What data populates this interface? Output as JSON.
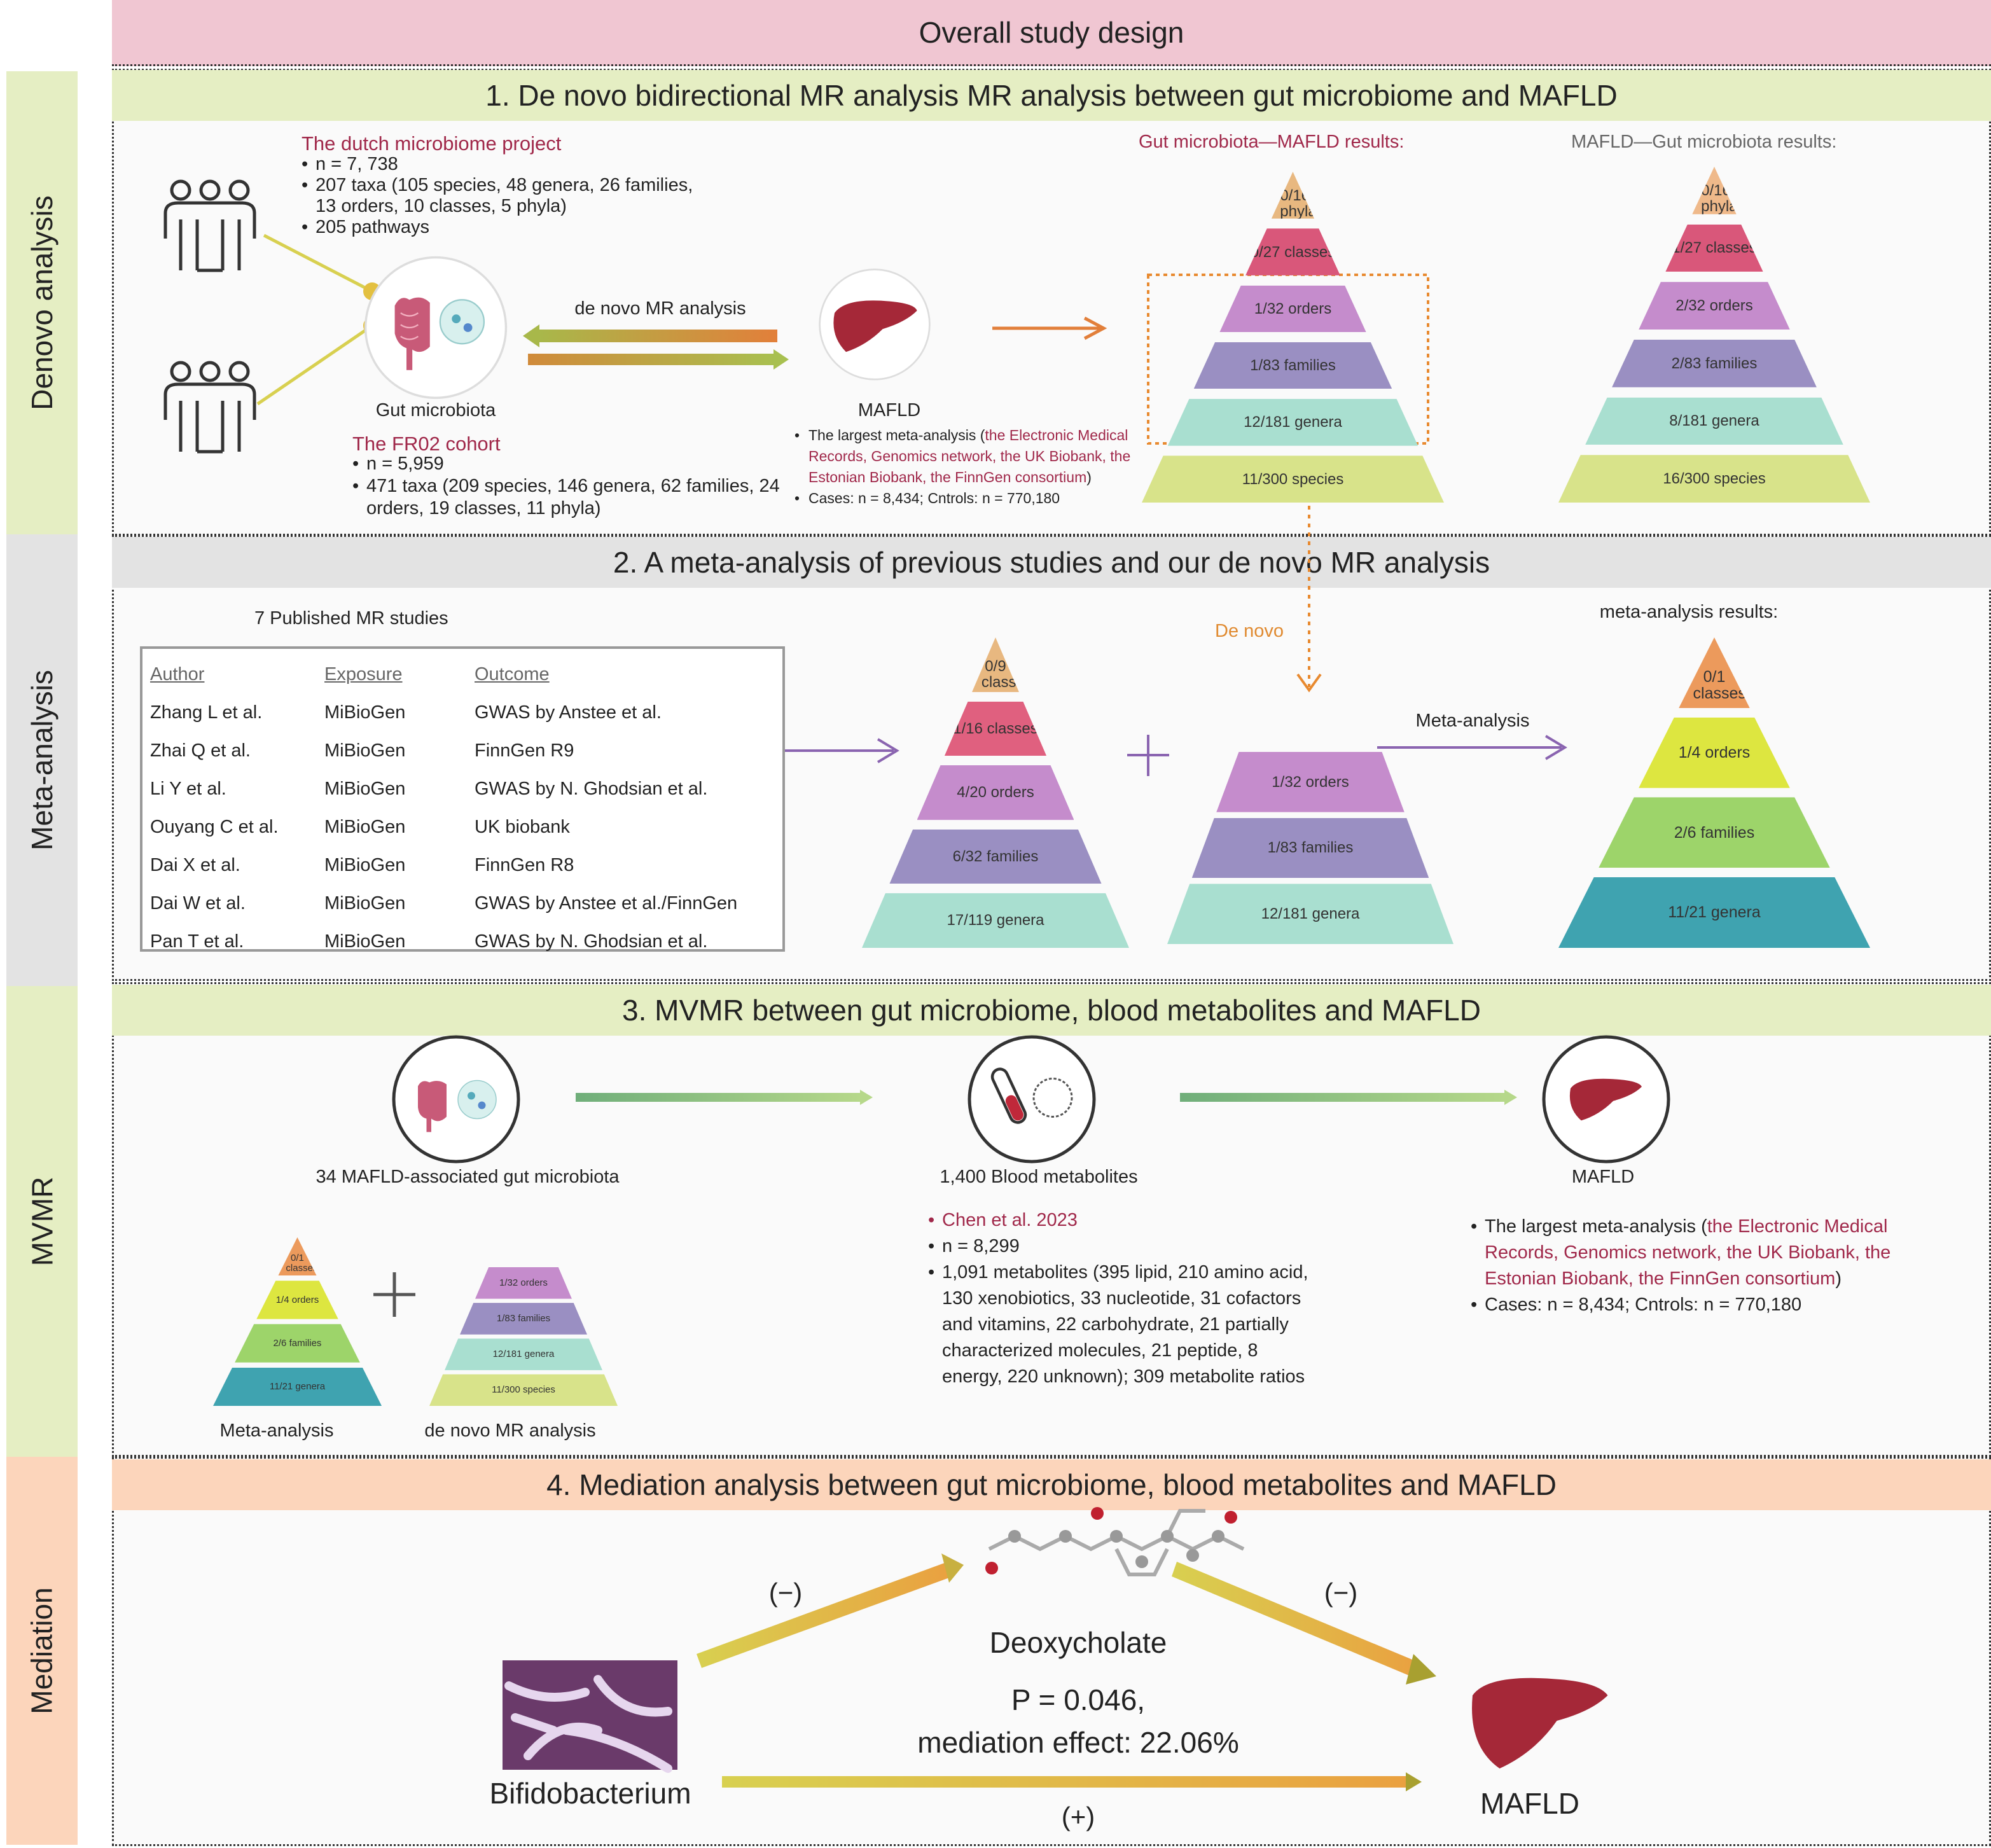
{
  "header": {
    "title": "Overall study design"
  },
  "side_labels": [
    "Denovo analysis",
    "Meta-analysis",
    "MVMR",
    "Mediation"
  ],
  "section1": {
    "title": "1. De novo bidirectional MR analysis MR analysis between gut microbiome and MAFLD",
    "dmp": {
      "title": "The dutch microbiome project",
      "bullets": [
        "n = 7, 738",
        "207 taxa (105 species, 48 genera, 26 families, 13 orders, 10 classes, 5 phyla)",
        "205 pathways"
      ]
    },
    "gut_label": "Gut microbiota",
    "fr02": {
      "title": "The FR02 cohort",
      "bullets": [
        "n = 5,959",
        "471 taxa (209 species, 146 genera, 62 families, 24 orders, 19 classes, 11 phyla)"
      ]
    },
    "arrow_label": "de novo MR analysis",
    "mafld_label": "MAFLD",
    "mafld_bullets": {
      "prefix": "The largest meta-analysis (",
      "sources": "the Electronic Medical Records, Genomics network, the UK Biobank, the Estonian Biobank, the FinnGen consortium",
      "suffix": ")",
      "cases": "Cases: n = 8,434; Cntrols: n = 770,180"
    },
    "gm_results_title": "Gut microbiota—MAFLD results:",
    "mafld_results_title": "MAFLD—Gut microbiota results:"
  },
  "section2": {
    "title": "2. A meta-analysis of previous studies and our de novo MR analysis",
    "table_title": "7 Published MR studies",
    "columns": [
      "Author",
      "Exposure",
      "Outcome"
    ],
    "rows": [
      [
        "Zhang L et al.",
        "MiBioGen",
        "GWAS by Anstee et al."
      ],
      [
        "Zhai Q et al.",
        "MiBioGen",
        "FinnGen R9"
      ],
      [
        "Li Y et al.",
        "MiBioGen",
        "GWAS by N. Ghodsian et al."
      ],
      [
        "Ouyang C et al.",
        "MiBioGen",
        "UK biobank"
      ],
      [
        "Dai X et al.",
        "MiBioGen",
        "FinnGen R8"
      ],
      [
        "Dai W et al.",
        "MiBioGen",
        "GWAS by Anstee et al./FinnGen"
      ],
      [
        "Pan T et al.",
        "MiBioGen",
        "GWAS by N. Ghodsian et al."
      ]
    ],
    "de_novo_label": "De novo",
    "meta_arrow_label": "Meta-analysis",
    "meta_results_title": "meta-analysis results:"
  },
  "section3": {
    "title": "3. MVMR between gut microbiome, blood metabolites and MAFLD",
    "gut_label": "34 MAFLD-associated gut microbiota",
    "blood_label": "1,400 Blood metabolites",
    "mafld_label": "MAFLD",
    "blood_bullets": [
      "Chen et al. 2023",
      "n = 8,299",
      "1,091 metabolites (395 lipid, 210 amino acid, 130 xenobiotics, 33 nucleotide, 31 cofactors and vitamins, 22 carbohydrate, 21 partially characterized molecules, 21 peptide, 8 energy, 220 unknown); 309 metabolite ratios"
    ],
    "mafld_bullets": {
      "prefix": "The largest meta-analysis (",
      "sources": "the Electronic Medical Records, Genomics network, the UK Biobank, the Estonian Biobank, the FinnGen consortium",
      "suffix": ")",
      "cases": "Cases: n = 8,434; Cntrols: n = 770,180"
    },
    "meta_caption": "Meta-analysis",
    "denovo_caption": "de novo MR analysis"
  },
  "section4": {
    "title": "4. Mediation analysis between gut microbiome, blood metabolites and MAFLD",
    "neg1": "(−)",
    "neg2": "(−)",
    "pos": "(+)",
    "mediator": "Deoxycholate",
    "p_value": "P = 0.046,",
    "effect": "mediation effect: 22.06%",
    "exposure": "Bifidobacterium",
    "outcome": "MAFLD"
  },
  "pyramids": {
    "gm_mafld": [
      {
        "label": "0/16 phyla",
        "color": "#e8b880"
      },
      {
        "label": "0/27 classes",
        "color": "#d9577a"
      },
      {
        "label": "1/32 orders",
        "color": "#c58ccc"
      },
      {
        "label": "1/83 families",
        "color": "#9a8fc2"
      },
      {
        "label": "12/181 genera",
        "color": "#a9dfd0"
      },
      {
        "label": "11/300 species",
        "color": "#d8e38a"
      }
    ],
    "mafld_gm": [
      {
        "label": "0/16 phyla",
        "color": "#efb98a"
      },
      {
        "label": "1/27 classes",
        "color": "#d9577a"
      },
      {
        "label": "2/32 orders",
        "color": "#c58ccc"
      },
      {
        "label": "2/83 families",
        "color": "#9a8fc2"
      },
      {
        "label": "8/181 genera",
        "color": "#a9dfd0"
      },
      {
        "label": "16/300 species",
        "color": "#d8e38a"
      }
    ],
    "published": [
      {
        "label": "0/9 classes",
        "color": "#e8b880"
      },
      {
        "label": "1/16 classes",
        "color": "#e0607f"
      },
      {
        "label": "4/20 orders",
        "color": "#c58ccc"
      },
      {
        "label": "6/32 families",
        "color": "#9a8fc2"
      },
      {
        "label": "17/119 genera",
        "color": "#a9dfd0"
      }
    ],
    "denovo": [
      {
        "label": "1/32 orders",
        "color": "#c58ccc"
      },
      {
        "label": "1/83 families",
        "color": "#9a8fc2"
      },
      {
        "label": "12/181 genera",
        "color": "#a9dfd0"
      }
    ],
    "meta_results": [
      {
        "label": "0/1 classes",
        "color": "#ec9a5c"
      },
      {
        "label": "1/4 orders",
        "color": "#dde640"
      },
      {
        "label": "2/6 families",
        "color": "#9dd46a"
      },
      {
        "label": "11/21 genera",
        "color": "#3fa3b0"
      }
    ],
    "mvmr_meta": [
      {
        "label": "0/1 classes",
        "color": "#ec9a5c"
      },
      {
        "label": "1/4 orders",
        "color": "#dde640"
      },
      {
        "label": "2/6 families",
        "color": "#9dd46a"
      },
      {
        "label": "11/21 genera",
        "color": "#3fa3b0"
      }
    ],
    "mvmr_denovo": [
      {
        "label": "1/32 orders",
        "color": "#c58ccc"
      },
      {
        "label": "1/83 families",
        "color": "#9a8fc2"
      },
      {
        "label": "12/181 genera",
        "color": "#a9dfd0"
      },
      {
        "label": "11/300 species",
        "color": "#d8e38a"
      }
    ]
  },
  "colors": {
    "header": "#f0c6d2",
    "green_band": "#e5eec3",
    "grey_band": "#e3e3e3",
    "peach_band": "#fcd5bb",
    "accent_red": "#a0284a",
    "orange": "#e08a30",
    "purple_arrow": "#8a64b0"
  }
}
